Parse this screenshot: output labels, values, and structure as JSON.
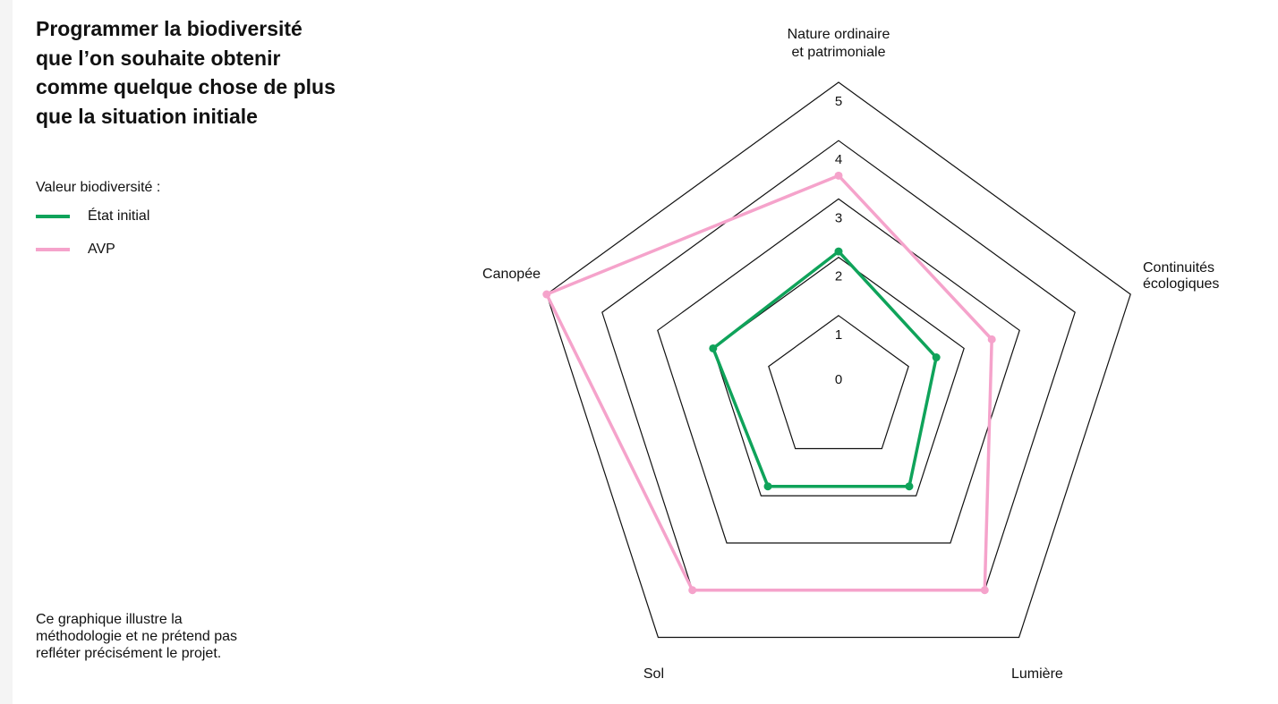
{
  "title_lines": [
    "Programmer la biodiversité",
    "que l’on souhaite obtenir",
    "comme quelque chose de plus",
    "que la situation initiale"
  ],
  "legend": {
    "label": "Valeur biodiversité :",
    "items": [
      "État initial",
      "AVP"
    ]
  },
  "note_lines": [
    "Ce graphique illustre la",
    "méthodologie et ne prétend pas",
    "refléter précisément le projet."
  ],
  "chart_data": {
    "type": "radar",
    "axes": [
      {
        "label_lines": [
          "Nature ordinaire",
          "et patrimoniale"
        ]
      },
      {
        "label_lines": [
          "Continuités",
          "écologiques"
        ]
      },
      {
        "label_lines": [
          "Lumière"
        ]
      },
      {
        "label_lines": [
          "Sol"
        ]
      },
      {
        "label_lines": [
          "Canopée"
        ]
      }
    ],
    "ticks": [
      "0",
      "1",
      "2",
      "3",
      "4",
      "5"
    ],
    "range": [
      0,
      5
    ],
    "series": [
      {
        "name": "État initial",
        "color": "#0fa35a",
        "values": [
          2.1,
          1.5,
          1.8,
          1.8,
          2.0
        ]
      },
      {
        "name": "AVP",
        "color": "#f5a3cb",
        "values": [
          3.4,
          2.5,
          4.0,
          4.0,
          5.0
        ]
      }
    ]
  }
}
